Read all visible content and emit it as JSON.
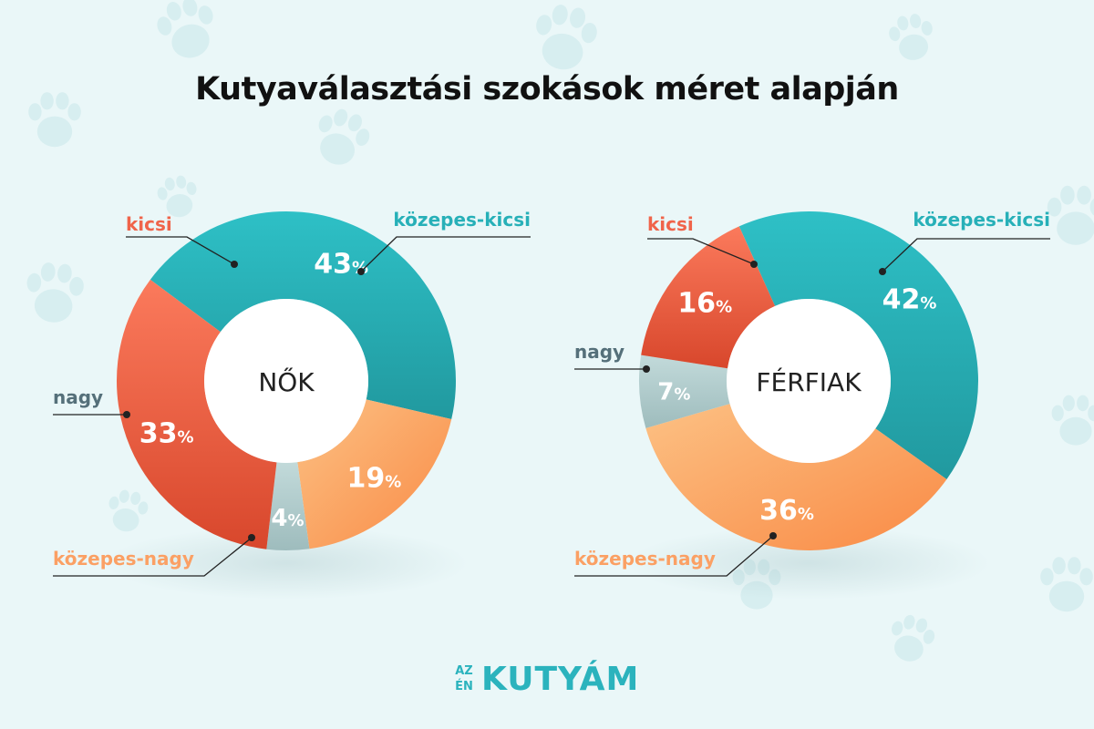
{
  "title": "Kutyaválasztási szokások méret alapján",
  "logo": {
    "small_top": "AZ",
    "small_bottom": "ÉN",
    "text": "KUTYÁM"
  },
  "colors": {
    "kicsi": "#f0644a",
    "kozepes_kicsi": "#27b0b8",
    "nagy": "#b0cccd",
    "kozepes_nagy": "#fba064",
    "label_nagy": "#55707a"
  },
  "chart_data": [
    {
      "type": "pie",
      "center_label": "NŐK",
      "categories": [
        "kicsi",
        "közepes-kicsi",
        "közepes-nagy",
        "nagy"
      ],
      "values": [
        33,
        43,
        19,
        4
      ],
      "value_suffix": "%"
    },
    {
      "type": "pie",
      "center_label": "FÉRFIAK",
      "categories": [
        "kicsi",
        "közepes-kicsi",
        "közepes-nagy",
        "nagy"
      ],
      "values": [
        16,
        42,
        36,
        7
      ],
      "value_suffix": "%"
    }
  ]
}
